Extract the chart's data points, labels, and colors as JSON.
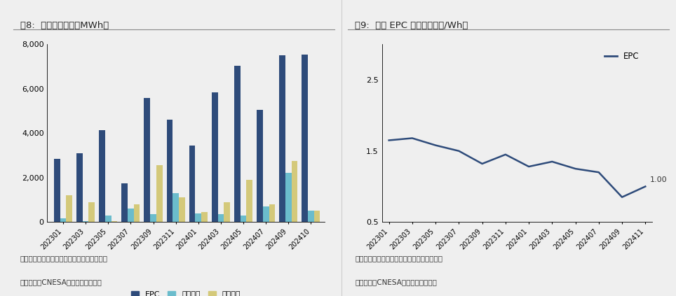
{
  "fig8_title": "图8:  储能项目中标（MWh）",
  "fig9_title": "图9:  储能 EPC 中标均价（元/Wh）",
  "bar_categories": [
    "202301",
    "202303",
    "202305",
    "202307",
    "202309",
    "202311",
    "202401",
    "202403",
    "202405",
    "202407",
    "202409",
    "202410"
  ],
  "epc_bars": [
    2850,
    3100,
    4150,
    1750,
    5600,
    4600,
    3450,
    5850,
    7050,
    5050,
    7500,
    7550
  ],
  "device_bars": [
    150,
    50,
    300,
    600,
    350,
    1300,
    400,
    350,
    300,
    700,
    2200,
    500
  ],
  "system_bars": [
    1200,
    900,
    50,
    800,
    2550,
    1100,
    450,
    900,
    1900,
    800,
    2750,
    500
  ],
  "bar_color_epc": "#2E4B7A",
  "bar_color_device": "#6BBCCC",
  "bar_color_system": "#D4C97A",
  "fig8_ylim": [
    0,
    8000
  ],
  "fig8_yticks": [
    0,
    2000,
    4000,
    6000,
    8000
  ],
  "source_text1": "数据来源：北极星储能网，储能与电力市场，",
  "source_text2": "储能头条，CNESA，东吴证券研究所",
  "line_categories": [
    "202301",
    "202303",
    "202305",
    "202307",
    "202309",
    "202311",
    "202401",
    "202403",
    "202405",
    "202407",
    "202409",
    "202411"
  ],
  "epc_line": [
    1.65,
    1.68,
    1.58,
    1.5,
    1.32,
    1.45,
    1.28,
    1.35,
    1.25,
    1.2,
    0.85,
    1.0
  ],
  "line_color": "#2E4B7A",
  "fig9_ylim": [
    0.5,
    3.0
  ],
  "fig9_yticks": [
    0.5,
    1.5,
    2.5
  ],
  "background_color": "#EFEFEF",
  "plot_bg": "#EFEFEF",
  "divider_color": "#CCCCCC"
}
